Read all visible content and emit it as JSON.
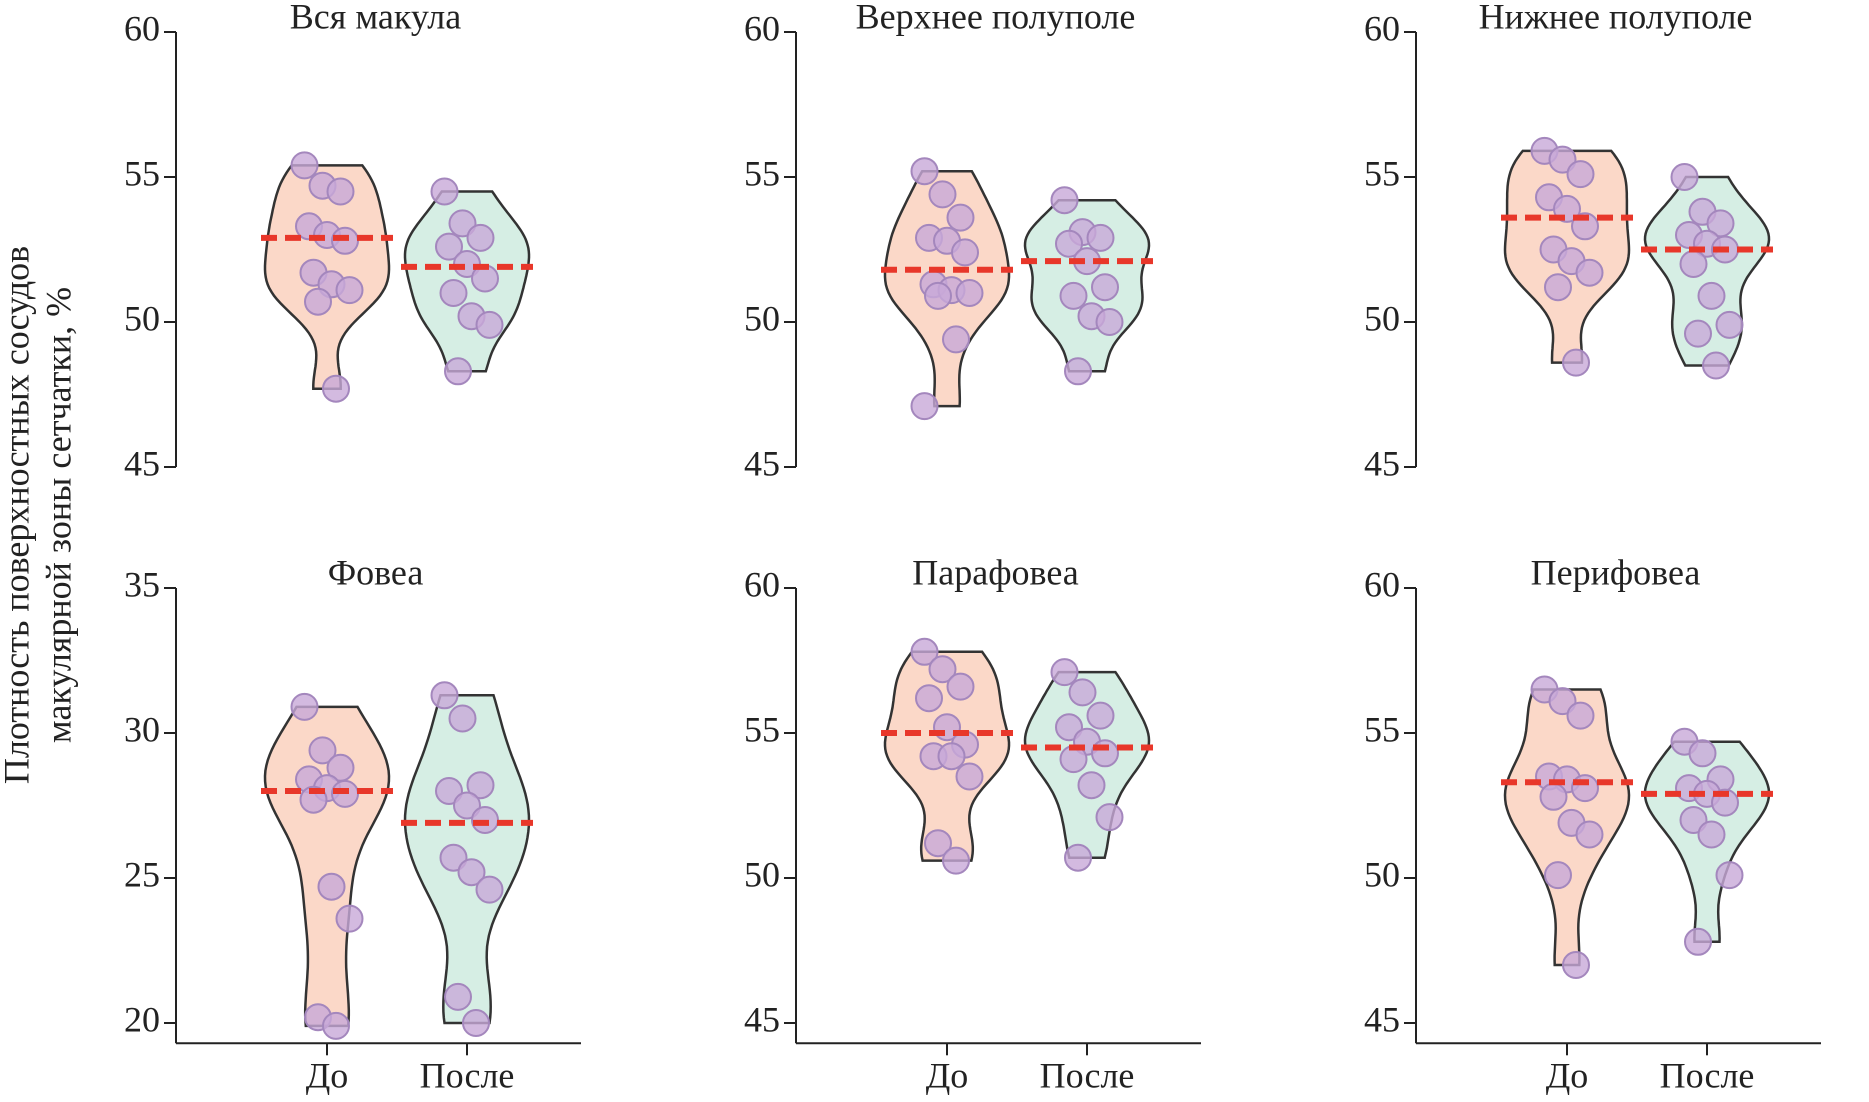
{
  "ylabel": [
    "Плотность поверхностных сосудов",
    "макулярной зоны сетчатки, %"
  ],
  "chart_data": [
    {
      "type": "violin",
      "title": "Вся макула",
      "ylim": [
        45,
        60
      ],
      "yticks": [
        45,
        50,
        55,
        60
      ],
      "mean_color": "#e8372a",
      "point_color": "#c8a9d8",
      "series": [
        {
          "color": "#fbd8c8",
          "values": [
            55.4,
            54.7,
            54.5,
            53.3,
            53.0,
            52.8,
            51.7,
            51.3,
            51.1,
            50.7,
            47.7
          ],
          "mean": 52.9
        },
        {
          "color": "#d6eee4",
          "values": [
            54.5,
            53.4,
            52.9,
            52.6,
            52.0,
            51.5,
            51.0,
            50.2,
            49.9,
            48.3
          ],
          "mean": 51.9
        }
      ]
    },
    {
      "type": "violin",
      "title": "Верхнее полуполе",
      "ylim": [
        45,
        60
      ],
      "yticks": [
        45,
        50,
        55,
        60
      ],
      "mean_color": "#e8372a",
      "point_color": "#c8a9d8",
      "series": [
        {
          "color": "#fbd8c8",
          "values": [
            55.2,
            54.4,
            53.6,
            52.9,
            52.8,
            52.4,
            51.3,
            51.1,
            51.0,
            50.9,
            49.4,
            47.1
          ],
          "mean": 51.8
        },
        {
          "color": "#d6eee4",
          "values": [
            54.2,
            53.1,
            52.9,
            52.7,
            52.1,
            51.2,
            50.9,
            50.2,
            50.0,
            48.3
          ],
          "mean": 52.1
        }
      ]
    },
    {
      "type": "violin",
      "title": "Нижнее полуполе",
      "ylim": [
        45,
        60
      ],
      "yticks": [
        45,
        50,
        55,
        60
      ],
      "mean_color": "#e8372a",
      "point_color": "#c8a9d8",
      "series": [
        {
          "color": "#fbd8c8",
          "values": [
            55.9,
            55.6,
            55.1,
            54.3,
            53.9,
            53.3,
            52.5,
            52.1,
            51.7,
            51.2,
            48.6
          ],
          "mean": 53.6
        },
        {
          "color": "#d6eee4",
          "values": [
            55.0,
            53.8,
            53.4,
            53.0,
            52.7,
            52.5,
            52.0,
            50.9,
            49.9,
            49.6,
            48.5
          ],
          "mean": 52.5
        }
      ]
    },
    {
      "type": "violin",
      "title": "Фовеа",
      "ylim": [
        19.3,
        35
      ],
      "yticks": [
        20,
        25,
        30,
        35
      ],
      "categories": [
        "До",
        "После"
      ],
      "mean_color": "#e8372a",
      "point_color": "#c8a9d8",
      "series": [
        {
          "color": "#fbd8c8",
          "values": [
            30.9,
            29.4,
            28.8,
            28.4,
            28.1,
            27.9,
            27.7,
            24.7,
            23.6,
            20.2,
            19.9
          ],
          "mean": 28.0
        },
        {
          "color": "#d6eee4",
          "values": [
            31.3,
            30.5,
            28.2,
            28.0,
            27.5,
            27.0,
            25.7,
            25.2,
            24.6,
            20.9,
            20.0
          ],
          "mean": 26.9
        }
      ]
    },
    {
      "type": "violin",
      "title": "Парафовеа",
      "ylim": [
        44.3,
        60
      ],
      "yticks": [
        45,
        50,
        55,
        60
      ],
      "categories": [
        "До",
        "После"
      ],
      "mean_color": "#e8372a",
      "point_color": "#c8a9d8",
      "series": [
        {
          "color": "#fbd8c8",
          "values": [
            57.8,
            57.2,
            56.6,
            56.2,
            55.2,
            54.6,
            54.2,
            54.2,
            53.5,
            51.2,
            50.6
          ],
          "mean": 55.0
        },
        {
          "color": "#d6eee4",
          "values": [
            57.1,
            56.4,
            55.6,
            55.2,
            54.7,
            54.3,
            54.1,
            53.2,
            52.1,
            50.7
          ],
          "mean": 54.5
        }
      ]
    },
    {
      "type": "violin",
      "title": "Перифовеа",
      "ylim": [
        44.3,
        60
      ],
      "yticks": [
        45,
        50,
        55,
        60
      ],
      "categories": [
        "До",
        "После"
      ],
      "mean_color": "#e8372a",
      "point_color": "#c8a9d8",
      "series": [
        {
          "color": "#fbd8c8",
          "values": [
            56.5,
            56.1,
            55.6,
            53.5,
            53.4,
            53.1,
            52.8,
            51.9,
            51.5,
            50.1,
            47.0
          ],
          "mean": 53.3
        },
        {
          "color": "#d6eee4",
          "values": [
            54.7,
            54.3,
            53.4,
            53.1,
            52.9,
            52.6,
            52.0,
            51.5,
            50.1,
            47.8
          ],
          "mean": 52.9
        }
      ]
    }
  ]
}
